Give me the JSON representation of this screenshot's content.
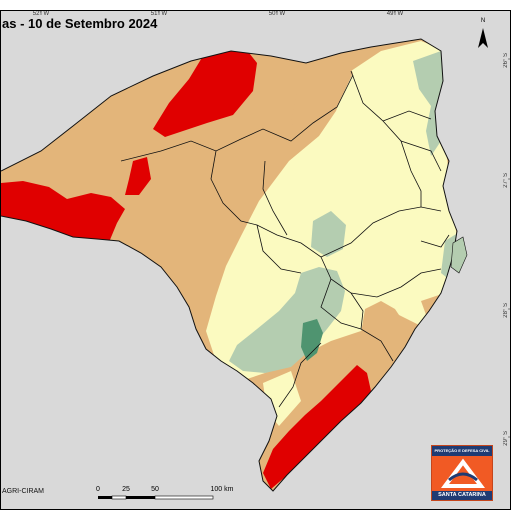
{
  "map": {
    "title": "as - 10 de Setembro 2024",
    "credit": "AGRI-CIRAM",
    "lon_ticks": [
      "52° W",
      "51° W",
      "50° W",
      "49° W"
    ],
    "lat_ticks": [
      "26° S",
      "27° S",
      "28° S",
      "29° S"
    ],
    "north_label": "N",
    "scale": {
      "labels": [
        "0",
        "25",
        "50",
        "100 km"
      ]
    },
    "logo": {
      "top_text": "PROTEÇÃO E DEFESA CIVIL",
      "bottom_text": "SANTA CATARINA"
    },
    "colors": {
      "ocean_background": "#d9d9d9",
      "very_low": "#e00000",
      "low": "#e3b57a",
      "normal": "#fbfac0",
      "high": "#b4cdb0",
      "very_high": "#4f9470",
      "logo_orange": "#f15a24",
      "logo_blue": "#1f3b73"
    }
  }
}
